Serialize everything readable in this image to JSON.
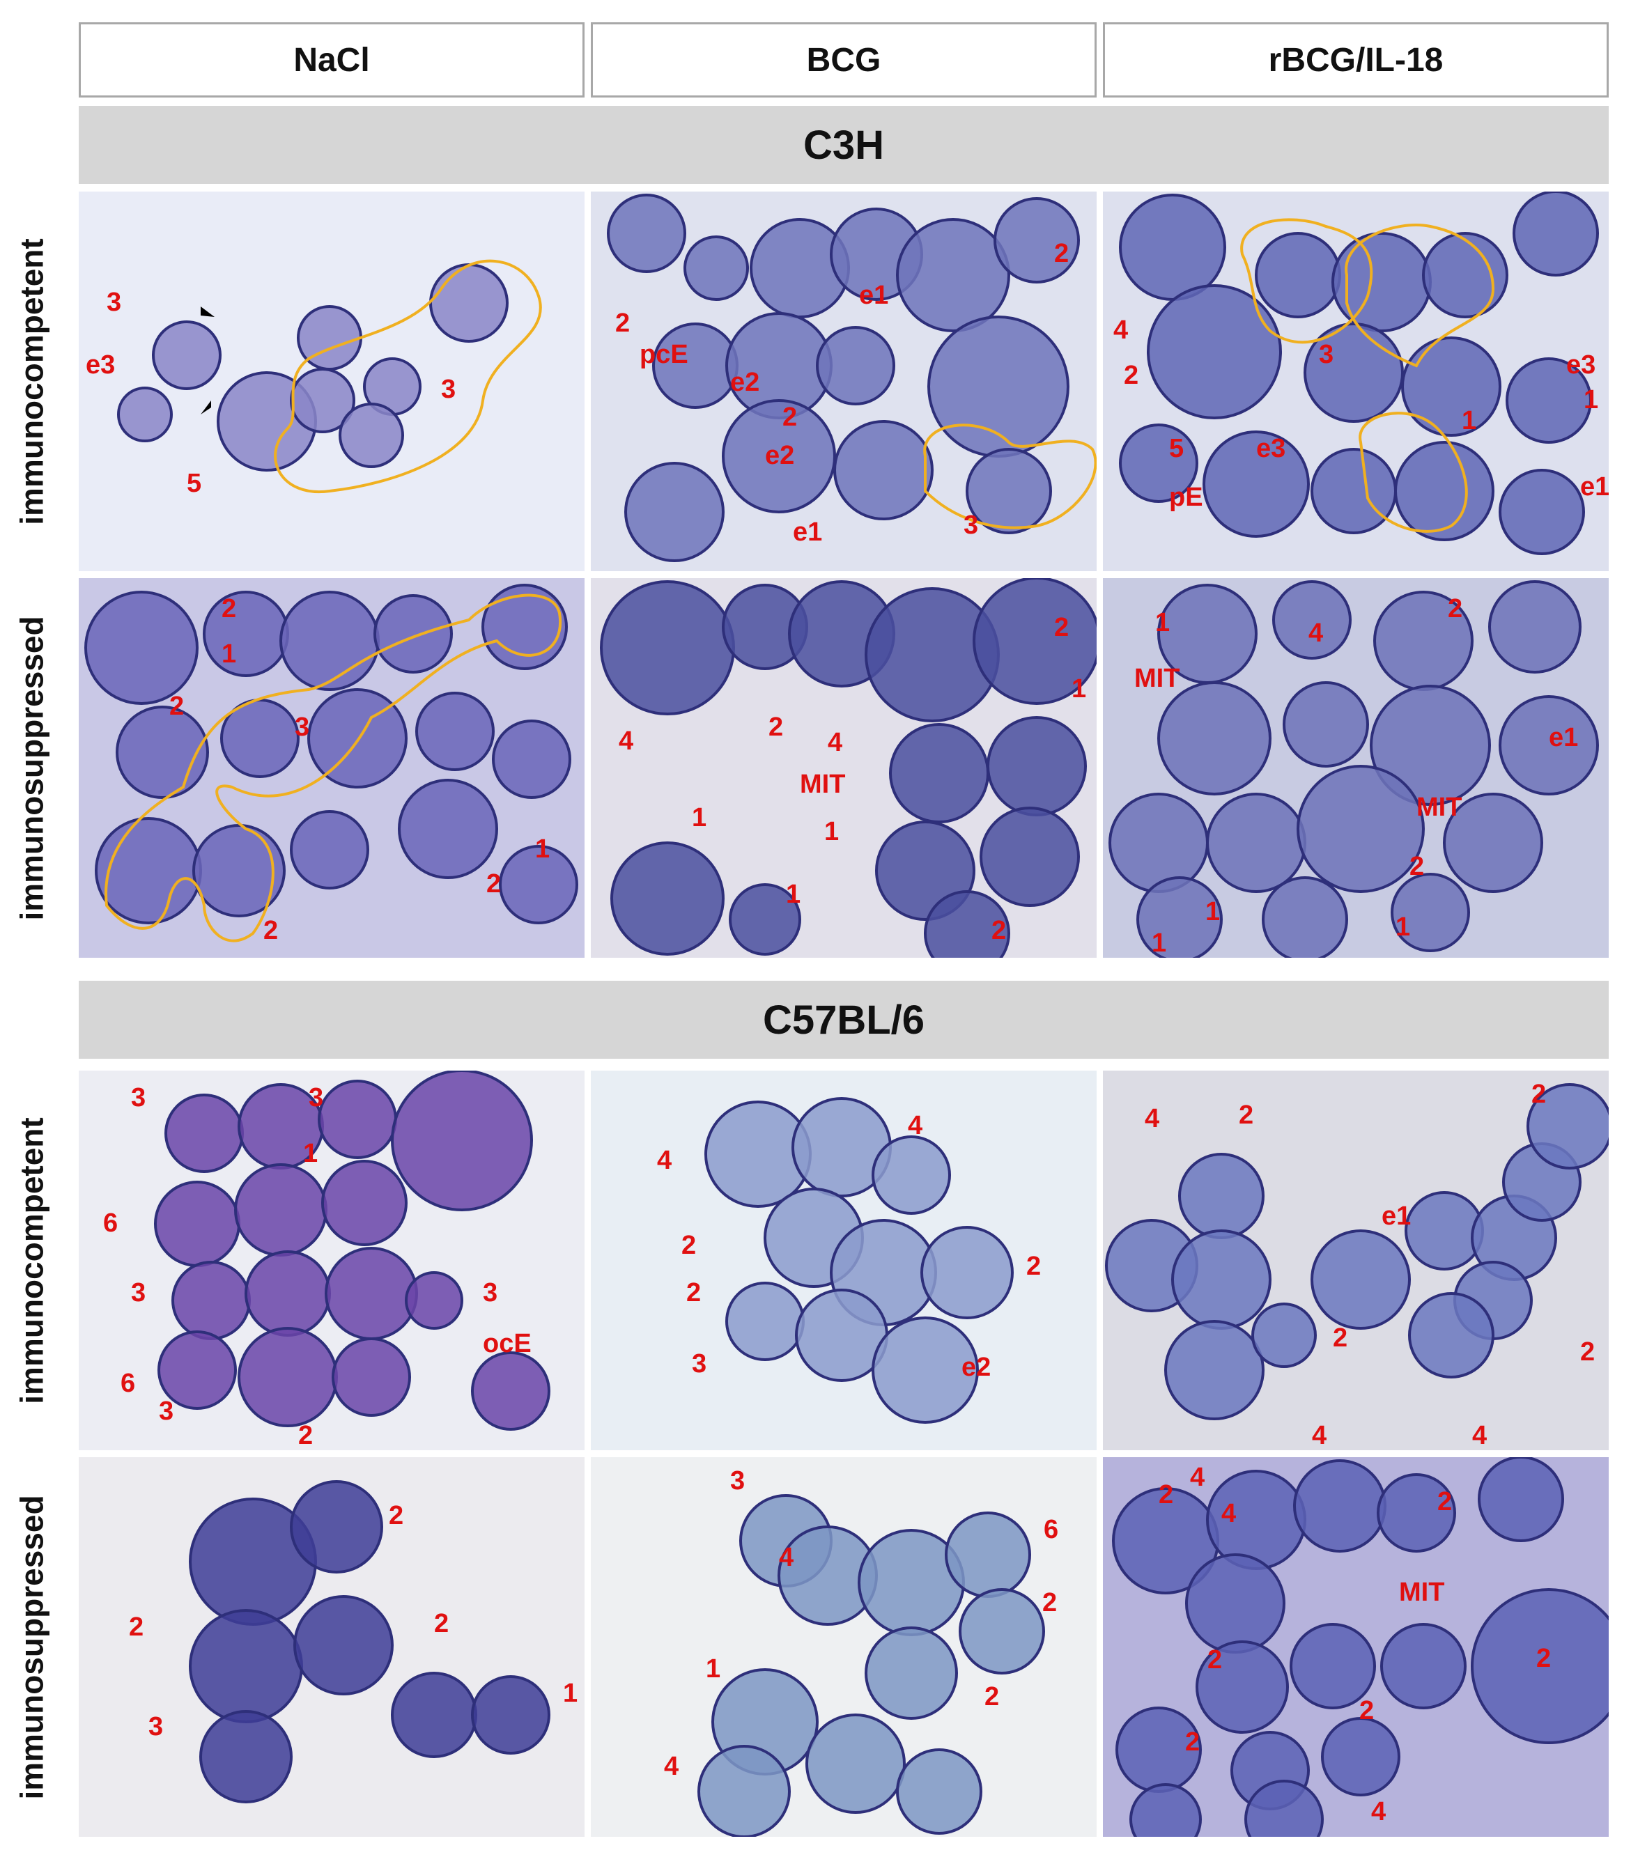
{
  "columns": [
    "NaCl",
    "BCG",
    "rBCG/IL-18"
  ],
  "strains": [
    "C3H",
    "C57BL/6"
  ],
  "row_labels": [
    "immunocompetent",
    "immunosuppressed"
  ],
  "colors": {
    "label": "#e01010",
    "outline": "#f0b020",
    "arrow": "#000000",
    "band": "#d6d6d6"
  },
  "panels": [
    {
      "id": "c3h-comp-nacl",
      "bg": "#e9ecf7",
      "cell": "#8a86c8",
      "labels": [
        "3",
        "e3",
        "3",
        "5"
      ]
    },
    {
      "id": "c3h-comp-bcg",
      "bg": "#dfe2ef",
      "cell": "#6f74bb",
      "labels": [
        "2",
        "pcE",
        "e2",
        "e1",
        "2",
        "2",
        "e2",
        "e1",
        "3"
      ]
    },
    {
      "id": "c3h-comp-rbcg",
      "bg": "#dde0ee",
      "cell": "#5f66b5",
      "labels": [
        "4",
        "2",
        "3",
        "e3",
        "1",
        "5",
        "e3",
        "1",
        "pE",
        "e1"
      ]
    },
    {
      "id": "c3h-supp-nacl",
      "bg": "#c9c8e6",
      "cell": "#6a65b8",
      "labels": [
        "2",
        "1",
        "2",
        "3",
        "1",
        "2",
        "2"
      ]
    },
    {
      "id": "c3h-supp-bcg",
      "bg": "#e2e0ea",
      "cell": "#4a4f9f",
      "labels": [
        "2",
        "1",
        "4",
        "2",
        "4",
        "MIT",
        "1",
        "1",
        "1",
        "2"
      ]
    },
    {
      "id": "c3h-supp-rbcg",
      "bg": "#c8cbe2",
      "cell": "#6d73b8",
      "labels": [
        "1",
        "2",
        "4",
        "MIT",
        "e1",
        "MIT",
        "2",
        "1",
        "1",
        "1"
      ]
    },
    {
      "id": "c57-comp-nacl",
      "bg": "#ecedf3",
      "cell": "#6a44a8",
      "labels": [
        "3",
        "3",
        "1",
        "6",
        "3",
        "3",
        "ocE",
        "6",
        "3",
        "2"
      ]
    },
    {
      "id": "c57-comp-bcg",
      "bg": "#e8eef4",
      "cell": "#8b9bcc",
      "labels": [
        "4",
        "4",
        "2",
        "2",
        "2",
        "3",
        "e2"
      ]
    },
    {
      "id": "c57-comp-rbcg",
      "bg": "#dcdce4",
      "cell": "#6b78c0",
      "labels": [
        "4",
        "2",
        "2",
        "e1",
        "2",
        "2",
        "4",
        "4"
      ]
    },
    {
      "id": "c57-supp-nacl",
      "bg": "#ecebef",
      "cell": "#3e3d96",
      "labels": [
        "2",
        "2",
        "2",
        "3",
        "1"
      ]
    },
    {
      "id": "c57-supp-bcg",
      "bg": "#eef0f2",
      "cell": "#7d96c4",
      "labels": [
        "3",
        "6",
        "4",
        "2",
        "1",
        "2",
        "4"
      ]
    },
    {
      "id": "c57-supp-rbcg",
      "bg": "#b6b3dc",
      "cell": "#5c62b5",
      "labels": [
        "2",
        "4",
        "4",
        "2",
        "MIT",
        "2",
        "2",
        "2",
        "2",
        "4"
      ]
    }
  ]
}
